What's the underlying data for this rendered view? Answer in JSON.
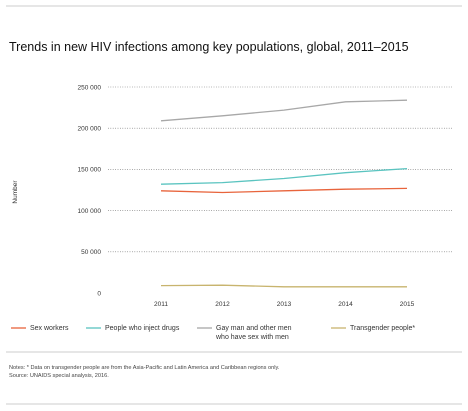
{
  "chart_data": {
    "type": "line",
    "title": "Trends in new HIV infections among key populations, global, 2011–2015",
    "ylabel": "Number",
    "xlabel": "",
    "x": [
      "2011",
      "2012",
      "2013",
      "2014",
      "2015"
    ],
    "ylim": [
      0,
      250000
    ],
    "yticks": [
      0,
      50000,
      100000,
      150000,
      200000,
      250000
    ],
    "ytick_labels": [
      "0",
      "50 000",
      "100 000",
      "150 000",
      "200 000",
      "250 000"
    ],
    "grid": "horizontal dotted",
    "legend_position": "bottom",
    "series": [
      {
        "name": "Sex workers",
        "color": "#e8643c",
        "values": [
          124000,
          122000,
          124000,
          126000,
          127000
        ]
      },
      {
        "name": "People who inject drugs",
        "color": "#5bc4c0",
        "values": [
          132000,
          134000,
          139000,
          146000,
          151000
        ]
      },
      {
        "name": "Gay man and other men who have sex with men",
        "legend_lines": [
          "Gay man and other men",
          "who have sex with men"
        ],
        "color": "#a8a8a8",
        "values": [
          209000,
          215000,
          222000,
          232000,
          234000
        ]
      },
      {
        "name": "Transgender people*",
        "color": "#c8b46e",
        "values": [
          9000,
          9500,
          7500,
          7500,
          7500
        ]
      }
    ],
    "notes": [
      "Notes: * Data on transgender people are from the Asia-Pacific and Latin America and Caribbean regions only.",
      "Source: UNAIDS special analysis, 2016."
    ]
  }
}
